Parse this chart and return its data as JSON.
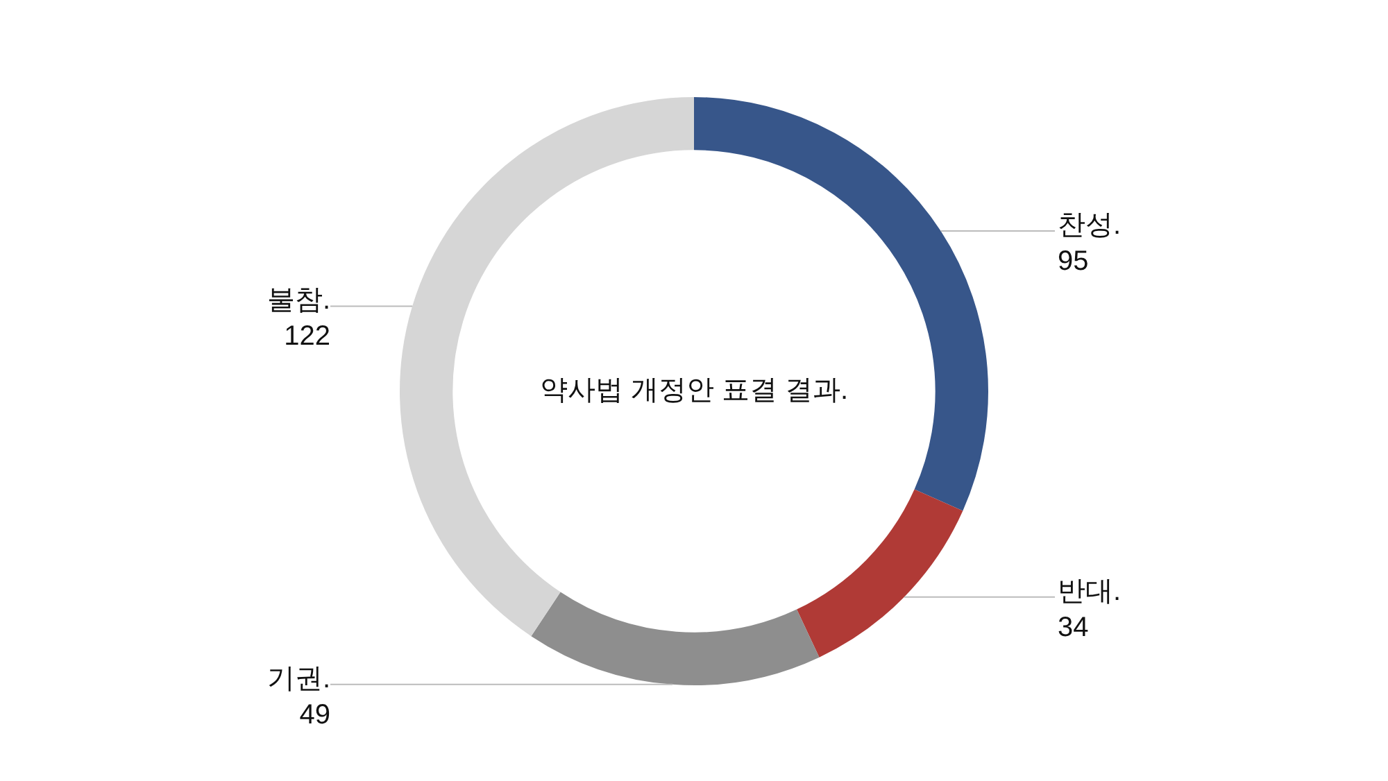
{
  "chart_data": {
    "type": "donut",
    "title": "약사법 개정안 표결 결과.",
    "categories": [
      "찬성.",
      "반대.",
      "기권.",
      "불참."
    ],
    "values": [
      95,
      34,
      49,
      122
    ],
    "colors": [
      "#37568a",
      "#b03a36",
      "#8e8e8e",
      "#d6d6d6"
    ],
    "data_labels": true
  }
}
